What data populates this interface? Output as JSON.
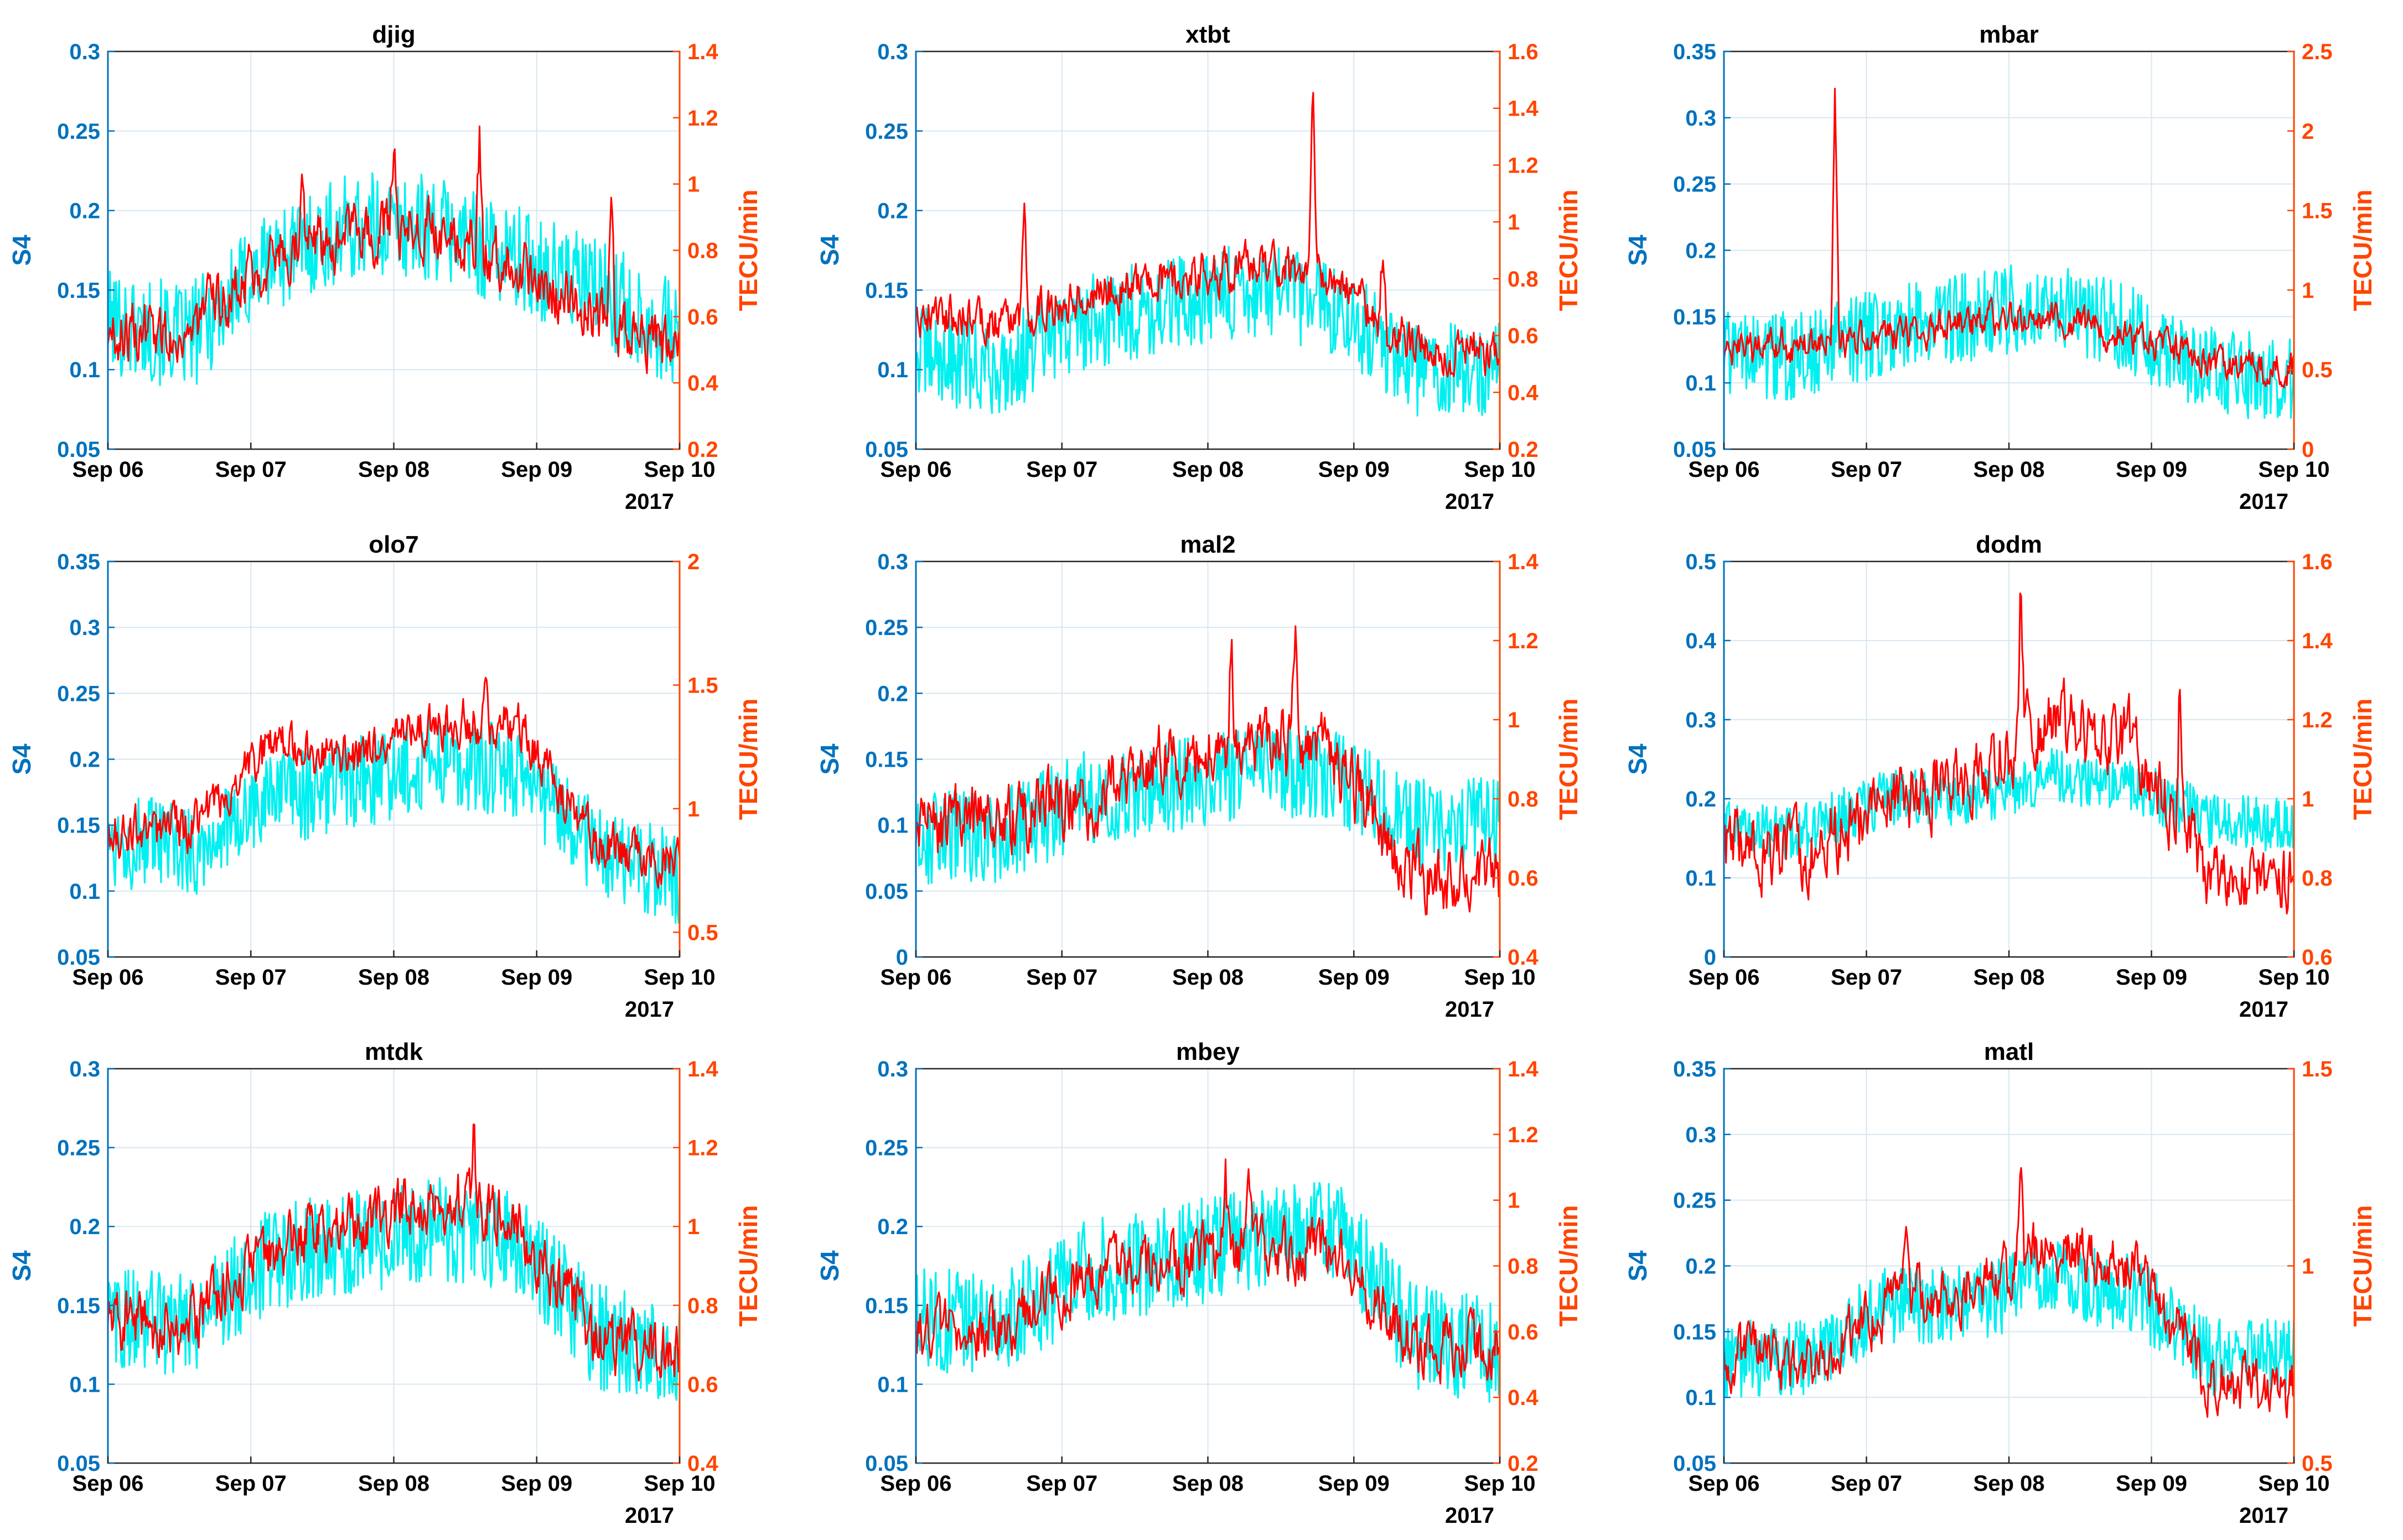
{
  "figure": {
    "colors": {
      "left_axis": "#0072BD",
      "right_axis": "#FF4500",
      "s4_line": "#00F0F0",
      "tec_line": "#FF0000",
      "grid": "#D7E7F2",
      "tick_text": "#000000"
    }
  },
  "chart_data": [
    {
      "type": "line",
      "title": "djig",
      "xlabel": "",
      "year_label": "2017",
      "x_ticks": [
        "Sep 06",
        "Sep 07",
        "Sep 08",
        "Sep 09",
        "Sep 10"
      ],
      "left_axis": {
        "label": "S4",
        "ylim": [
          0.05,
          0.3
        ],
        "ticks": [
          "0.05",
          "0.1",
          "0.15",
          "0.2",
          "0.25",
          "0.3"
        ]
      },
      "right_axis": {
        "label": "TECU/min",
        "ylim": [
          0.2,
          1.4
        ],
        "ticks": [
          "0.2",
          "0.4",
          "0.6",
          "0.8",
          "1",
          "1.2",
          "1.4"
        ]
      },
      "series": [
        {
          "name": "S4",
          "axis": "left",
          "color": "#00F0F0",
          "profile": [
            0.13,
            0.12,
            0.17,
            0.19,
            0.19,
            0.17,
            0.15,
            0.12
          ],
          "noise": 0.028,
          "seed": 101
        },
        {
          "name": "TECU/min",
          "axis": "right",
          "color": "#FF0000",
          "profile": [
            0.55,
            0.55,
            0.8,
            0.85,
            0.88,
            0.75,
            0.6,
            0.48
          ],
          "noise": 0.1,
          "seed": 102,
          "spikes": [
            [
              0.34,
              0.3
            ],
            [
              0.88,
              0.5
            ],
            [
              0.5,
              0.3
            ],
            [
              0.65,
              0.3
            ]
          ]
        }
      ]
    },
    {
      "type": "line",
      "title": "xtbt",
      "xlabel": "",
      "year_label": "2017",
      "x_ticks": [
        "Sep 06",
        "Sep 07",
        "Sep 08",
        "Sep 09",
        "Sep 10"
      ],
      "left_axis": {
        "label": "S4",
        "ylim": [
          0.05,
          0.3
        ],
        "ticks": [
          "0.05",
          "0.1",
          "0.15",
          "0.2",
          "0.25",
          "0.3"
        ]
      },
      "right_axis": {
        "label": "TECU/min",
        "ylim": [
          0.2,
          1.6
        ],
        "ticks": [
          "0.2",
          "0.4",
          "0.6",
          "0.8",
          "1",
          "1.2",
          "1.4",
          "1.6"
        ]
      },
      "series": [
        {
          "name": "S4",
          "axis": "left",
          "color": "#00F0F0",
          "profile": [
            0.11,
            0.1,
            0.13,
            0.14,
            0.15,
            0.14,
            0.1,
            0.1
          ],
          "noise": 0.025,
          "seed": 201
        },
        {
          "name": "TECU/min",
          "axis": "right",
          "color": "#FF0000",
          "profile": [
            0.7,
            0.65,
            0.75,
            0.8,
            0.85,
            0.8,
            0.55,
            0.55
          ],
          "noise": 0.09,
          "seed": 202,
          "spikes": [
            [
              0.185,
              0.4
            ],
            [
              0.68,
              0.7
            ],
            [
              0.8,
              0.25
            ]
          ]
        }
      ]
    },
    {
      "type": "line",
      "title": "mbar",
      "xlabel": "",
      "year_label": "2017",
      "x_ticks": [
        "Sep 06",
        "Sep 07",
        "Sep 08",
        "Sep 09",
        "Sep 10"
      ],
      "left_axis": {
        "label": "S4",
        "ylim": [
          0.05,
          0.35
        ],
        "ticks": [
          "0.05",
          "0.1",
          "0.15",
          "0.2",
          "0.25",
          "0.3",
          "0.35"
        ]
      },
      "right_axis": {
        "label": "TECU/min",
        "ylim": [
          0,
          2.5
        ],
        "ticks": [
          "0",
          "0.5",
          "1",
          "1.5",
          "2",
          "2.5"
        ]
      },
      "series": [
        {
          "name": "S4",
          "axis": "left",
          "color": "#00F0F0",
          "profile": [
            0.12,
            0.12,
            0.14,
            0.15,
            0.16,
            0.14,
            0.11,
            0.1
          ],
          "noise": 0.028,
          "seed": 301
        },
        {
          "name": "TECU/min",
          "axis": "right",
          "color": "#FF0000",
          "profile": [
            0.6,
            0.65,
            0.7,
            0.8,
            0.85,
            0.7,
            0.55,
            0.5
          ],
          "noise": 0.12,
          "seed": 302,
          "spikes": [
            [
              0.195,
              1.6
            ]
          ]
        }
      ]
    },
    {
      "type": "line",
      "title": "olo7",
      "xlabel": "",
      "year_label": "2017",
      "x_ticks": [
        "Sep 06",
        "Sep 07",
        "Sep 08",
        "Sep 09",
        "Sep 10"
      ],
      "left_axis": {
        "label": "S4",
        "ylim": [
          0.05,
          0.35
        ],
        "ticks": [
          "0.05",
          "0.1",
          "0.15",
          "0.2",
          "0.25",
          "0.3",
          "0.35"
        ]
      },
      "right_axis": {
        "label": "TECU/min",
        "ylim": [
          0.4,
          2
        ],
        "ticks": [
          "0.5",
          "1",
          "1.5",
          "2"
        ]
      },
      "series": [
        {
          "name": "S4",
          "axis": "left",
          "color": "#00F0F0",
          "profile": [
            0.14,
            0.13,
            0.17,
            0.18,
            0.2,
            0.19,
            0.13,
            0.11
          ],
          "noise": 0.03,
          "seed": 401
        },
        {
          "name": "TECU/min",
          "axis": "right",
          "color": "#FF0000",
          "profile": [
            0.9,
            0.9,
            1.25,
            1.2,
            1.35,
            1.35,
            0.85,
            0.8
          ],
          "noise": 0.11,
          "seed": 402,
          "spikes": [
            [
              0.66,
              0.3
            ]
          ]
        }
      ]
    },
    {
      "type": "line",
      "title": "mal2",
      "xlabel": "",
      "year_label": "2017",
      "x_ticks": [
        "Sep 06",
        "Sep 07",
        "Sep 08",
        "Sep 09",
        "Sep 10"
      ],
      "left_axis": {
        "label": "S4",
        "ylim": [
          0,
          0.3
        ],
        "ticks": [
          "0",
          "0.05",
          "0.1",
          "0.15",
          "0.2",
          "0.25",
          "0.3"
        ]
      },
      "right_axis": {
        "label": "TECU/min",
        "ylim": [
          0.4,
          1.4
        ],
        "ticks": [
          "0.4",
          "0.6",
          "0.8",
          "1",
          "1.2",
          "1.4"
        ]
      },
      "series": [
        {
          "name": "S4",
          "axis": "left",
          "color": "#00F0F0",
          "profile": [
            0.09,
            0.09,
            0.12,
            0.13,
            0.14,
            0.14,
            0.1,
            0.1
          ],
          "noise": 0.03,
          "seed": 501
        },
        {
          "name": "TECU/min",
          "axis": "right",
          "color": "#FF0000",
          "profile": [
            0.7,
            0.75,
            0.8,
            0.9,
            0.95,
            0.9,
            0.6,
            0.6
          ],
          "noise": 0.1,
          "seed": 502,
          "spikes": [
            [
              0.54,
              0.25
            ],
            [
              0.65,
              0.3
            ]
          ]
        }
      ]
    },
    {
      "type": "line",
      "title": "dodm",
      "xlabel": "",
      "year_label": "2017",
      "x_ticks": [
        "Sep 06",
        "Sep 07",
        "Sep 08",
        "Sep 09",
        "Sep 10"
      ],
      "left_axis": {
        "label": "S4",
        "ylim": [
          0,
          0.5
        ],
        "ticks": [
          "0",
          "0.1",
          "0.2",
          "0.3",
          "0.4",
          "0.5"
        ]
      },
      "right_axis": {
        "label": "TECU/min",
        "ylim": [
          0.6,
          1.6
        ],
        "ticks": [
          "0.6",
          "0.8",
          "1",
          "1.2",
          "1.4",
          "1.6"
        ]
      },
      "series": [
        {
          "name": "S4",
          "axis": "left",
          "color": "#00F0F0",
          "profile": [
            0.16,
            0.16,
            0.2,
            0.2,
            0.23,
            0.22,
            0.17,
            0.17
          ],
          "noise": 0.03,
          "seed": 601
        },
        {
          "name": "TECU/min",
          "axis": "right",
          "color": "#FF0000",
          "profile": [
            0.88,
            0.85,
            1.0,
            1.05,
            1.2,
            1.15,
            0.78,
            0.8
          ],
          "noise": 0.1,
          "seed": 602,
          "spikes": [
            [
              0.52,
              0.35
            ],
            [
              0.8,
              0.4
            ]
          ]
        }
      ]
    },
    {
      "type": "line",
      "title": "mtdk",
      "xlabel": "",
      "year_label": "2017",
      "x_ticks": [
        "Sep 06",
        "Sep 07",
        "Sep 08",
        "Sep 09",
        "Sep 10"
      ],
      "left_axis": {
        "label": "S4",
        "ylim": [
          0.05,
          0.3
        ],
        "ticks": [
          "0.05",
          "0.1",
          "0.15",
          "0.2",
          "0.25",
          "0.3"
        ]
      },
      "right_axis": {
        "label": "TECU/min",
        "ylim": [
          0.4,
          1.4
        ],
        "ticks": [
          "0.4",
          "0.6",
          "0.8",
          "1",
          "1.2",
          "1.4"
        ]
      },
      "series": [
        {
          "name": "S4",
          "axis": "left",
          "color": "#00F0F0",
          "profile": [
            0.14,
            0.14,
            0.18,
            0.19,
            0.2,
            0.19,
            0.13,
            0.12
          ],
          "noise": 0.028,
          "seed": 701
        },
        {
          "name": "TECU/min",
          "axis": "right",
          "color": "#FF0000",
          "profile": [
            0.75,
            0.75,
            0.95,
            1.0,
            1.08,
            1.02,
            0.7,
            0.68
          ],
          "noise": 0.09,
          "seed": 702,
          "spikes": [
            [
              0.64,
              0.2
            ]
          ]
        }
      ]
    },
    {
      "type": "line",
      "title": "mbey",
      "xlabel": "",
      "year_label": "2017",
      "x_ticks": [
        "Sep 06",
        "Sep 07",
        "Sep 08",
        "Sep 09",
        "Sep 10"
      ],
      "left_axis": {
        "label": "S4",
        "ylim": [
          0.05,
          0.3
        ],
        "ticks": [
          "0.05",
          "0.1",
          "0.15",
          "0.2",
          "0.25",
          "0.3"
        ]
      },
      "right_axis": {
        "label": "TECU/min",
        "ylim": [
          0.2,
          1.4
        ],
        "ticks": [
          "0.2",
          "0.4",
          "0.6",
          "0.8",
          "1",
          "1.2",
          "1.4"
        ]
      },
      "series": [
        {
          "name": "S4",
          "axis": "left",
          "color": "#00F0F0",
          "profile": [
            0.14,
            0.14,
            0.17,
            0.18,
            0.19,
            0.2,
            0.13,
            0.12
          ],
          "noise": 0.028,
          "seed": 801
        },
        {
          "name": "TECU/min",
          "axis": "right",
          "color": "#FF0000",
          "profile": [
            0.6,
            0.6,
            0.75,
            0.8,
            0.85,
            0.85,
            0.55,
            0.55
          ],
          "noise": 0.1,
          "seed": 802,
          "spikes": [
            [
              0.53,
              0.3
            ],
            [
              0.57,
              0.3
            ]
          ]
        }
      ]
    },
    {
      "type": "line",
      "title": "matl",
      "xlabel": "",
      "year_label": "2017",
      "x_ticks": [
        "Sep 06",
        "Sep 07",
        "Sep 08",
        "Sep 09",
        "Sep 10"
      ],
      "left_axis": {
        "label": "S4",
        "ylim": [
          0.05,
          0.35
        ],
        "ticks": [
          "0.05",
          "0.1",
          "0.15",
          "0.2",
          "0.25",
          "0.3",
          "0.35"
        ]
      },
      "right_axis": {
        "label": "TECU/min",
        "ylim": [
          0.5,
          1.5
        ],
        "ticks": [
          "0.5",
          "1",
          "1.5"
        ]
      },
      "series": [
        {
          "name": "S4",
          "axis": "left",
          "color": "#00F0F0",
          "profile": [
            0.13,
            0.13,
            0.17,
            0.17,
            0.19,
            0.18,
            0.13,
            0.13
          ],
          "noise": 0.025,
          "seed": 901
        },
        {
          "name": "TECU/min",
          "axis": "right",
          "color": "#FF0000",
          "profile": [
            0.78,
            0.75,
            0.9,
            0.95,
            1.05,
            1.0,
            0.7,
            0.68
          ],
          "noise": 0.08,
          "seed": 902,
          "spikes": [
            [
              0.52,
              0.3
            ],
            [
              0.32,
              0.2
            ]
          ]
        }
      ]
    }
  ]
}
